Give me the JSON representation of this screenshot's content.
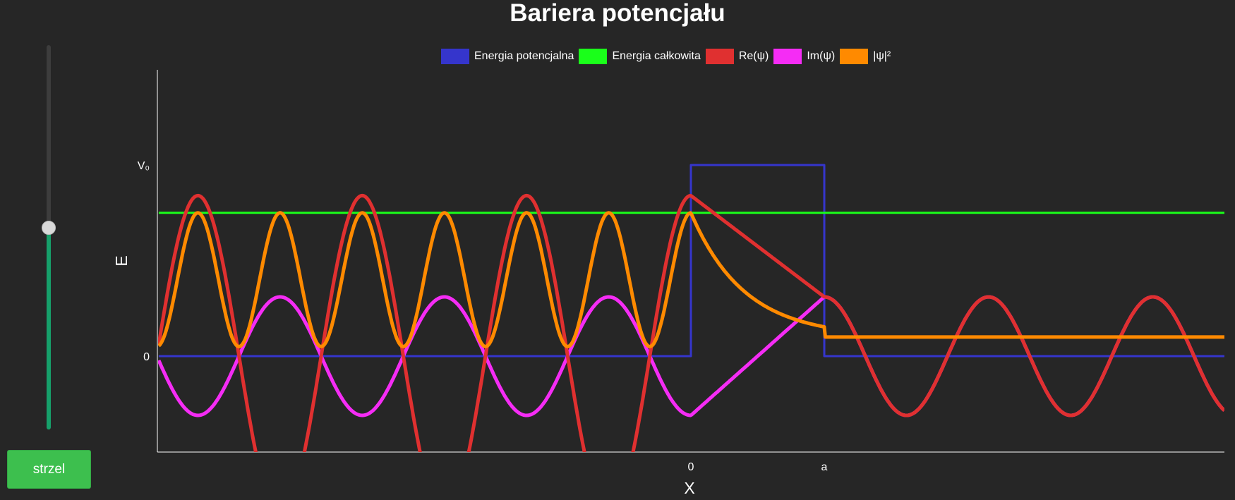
{
  "title": "Bariera potencjału",
  "controls": {
    "energy_slider_fraction": 0.525,
    "fire_button_label": "strzel"
  },
  "legend": [
    {
      "label": "Energia potencjalna",
      "color": "#3535cc"
    },
    {
      "label": "Energia całkowita",
      "color": "#1aff1a"
    },
    {
      "label": "Re(ψ)",
      "color": "#e03030"
    },
    {
      "label": "Im(ψ)",
      "color": "#f52cf5"
    },
    {
      "label": "|ψ|²",
      "color": "#ff8a00"
    }
  ],
  "chart_data": {
    "type": "line",
    "title": "Bariera potencjału",
    "xlabel": "X",
    "ylabel": "E",
    "x_ticks": [
      {
        "value": 0,
        "label": "0"
      },
      {
        "value": 1,
        "label": "a"
      }
    ],
    "y_ticks": [
      {
        "value": 0,
        "label": "0"
      },
      {
        "value": 1,
        "label": "V₀"
      }
    ],
    "xlim": [
      -3.99,
      4.0
    ],
    "ylim": [
      -0.5,
      1.5
    ],
    "potential": {
      "name": "Energia potencjalna",
      "x": [
        -3.99,
        0,
        0,
        1,
        1,
        4.0
      ],
      "y": [
        0,
        0,
        1,
        1,
        0,
        0
      ]
    },
    "total_energy": {
      "name": "Energia całkowita",
      "value": 0.75
    },
    "wave": {
      "k": 5.1,
      "kappa": 2.5,
      "Re_psi_amplitude_left": 0.84,
      "Im_psi_amplitude_left": 0.31,
      "transmitted_amplitude": 0.31,
      "psi_squared_offset": 0.0,
      "psi_squared_scale": 1.0
    },
    "series": [
      {
        "name": "Re(ψ)"
      },
      {
        "name": "Im(ψ)"
      },
      {
        "name": "|ψ|²"
      }
    ],
    "grid": false,
    "legend_position": "top-center"
  }
}
